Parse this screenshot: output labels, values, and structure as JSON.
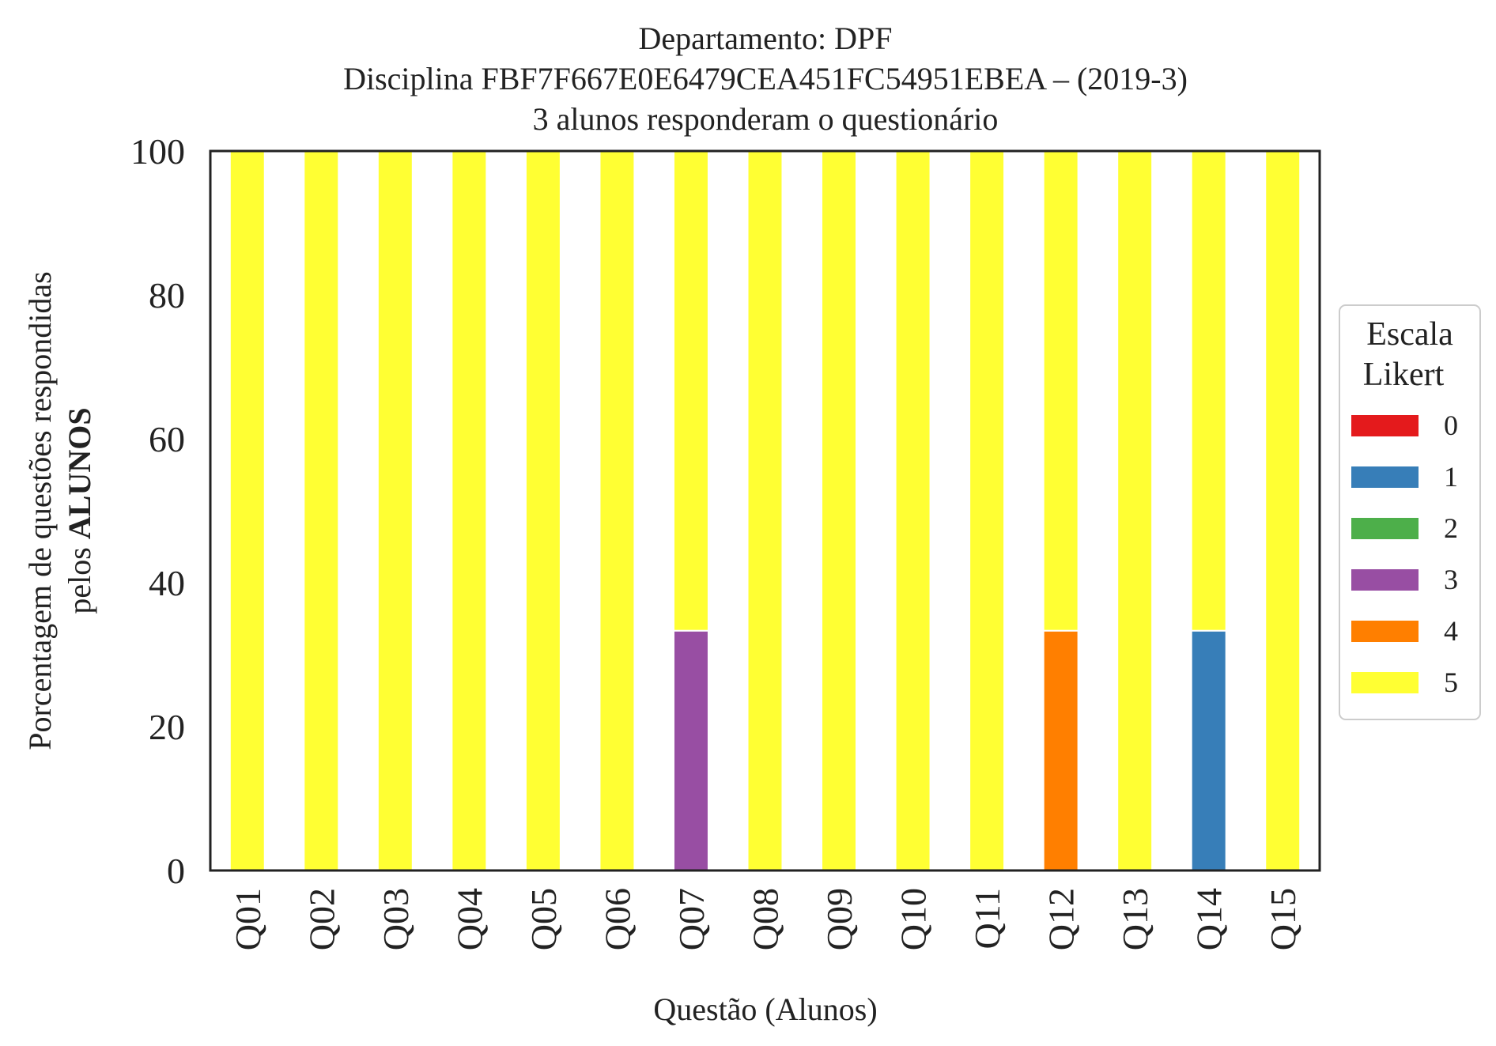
{
  "chart_data": {
    "type": "bar",
    "stacked": true,
    "title": [
      "Departamento: DPF",
      "Disciplina FBF7F667E0E6479CEA451FC54951EBEA – (2019-3)",
      "3 alunos responderam o questionário"
    ],
    "xlabel": "Questão (Alunos)",
    "ylabel": {
      "line1": "Porcentagem de questões respondidas",
      "line2_prefix": "pelos ",
      "line2_bold": "ALUNOS"
    },
    "ylim": [
      0,
      100
    ],
    "yticks": [
      0,
      20,
      40,
      60,
      80,
      100
    ],
    "categories": [
      "Q01",
      "Q02",
      "Q03",
      "Q04",
      "Q05",
      "Q06",
      "Q07",
      "Q08",
      "Q09",
      "Q10",
      "Q11",
      "Q12",
      "Q13",
      "Q14",
      "Q15"
    ],
    "series": [
      {
        "name": "0",
        "color": "#e41a1c",
        "values": [
          0,
          0,
          0,
          0,
          0,
          0,
          0,
          0,
          0,
          0,
          0,
          0,
          0,
          0,
          0
        ]
      },
      {
        "name": "1",
        "color": "#377eb8",
        "values": [
          0,
          0,
          0,
          0,
          0,
          0,
          0,
          0,
          0,
          0,
          0,
          0,
          0,
          33.33,
          0
        ]
      },
      {
        "name": "2",
        "color": "#4daf4a",
        "values": [
          0,
          0,
          0,
          0,
          0,
          0,
          0,
          0,
          0,
          0,
          0,
          0,
          0,
          0,
          0
        ]
      },
      {
        "name": "3",
        "color": "#984ea3",
        "values": [
          0,
          0,
          0,
          0,
          0,
          0,
          33.33,
          0,
          0,
          0,
          0,
          0,
          0,
          0,
          0
        ]
      },
      {
        "name": "4",
        "color": "#ff7f00",
        "values": [
          0,
          0,
          0,
          0,
          0,
          0,
          0,
          0,
          0,
          0,
          0,
          33.33,
          0,
          0,
          0
        ]
      },
      {
        "name": "5",
        "color": "#ffff33",
        "values": [
          100,
          100,
          100,
          100,
          100,
          100,
          66.67,
          100,
          100,
          100,
          100,
          66.67,
          100,
          66.67,
          100
        ]
      }
    ],
    "legend": {
      "title": [
        "Escala",
        "Likert"
      ],
      "placement": "right"
    },
    "grid": false
  }
}
